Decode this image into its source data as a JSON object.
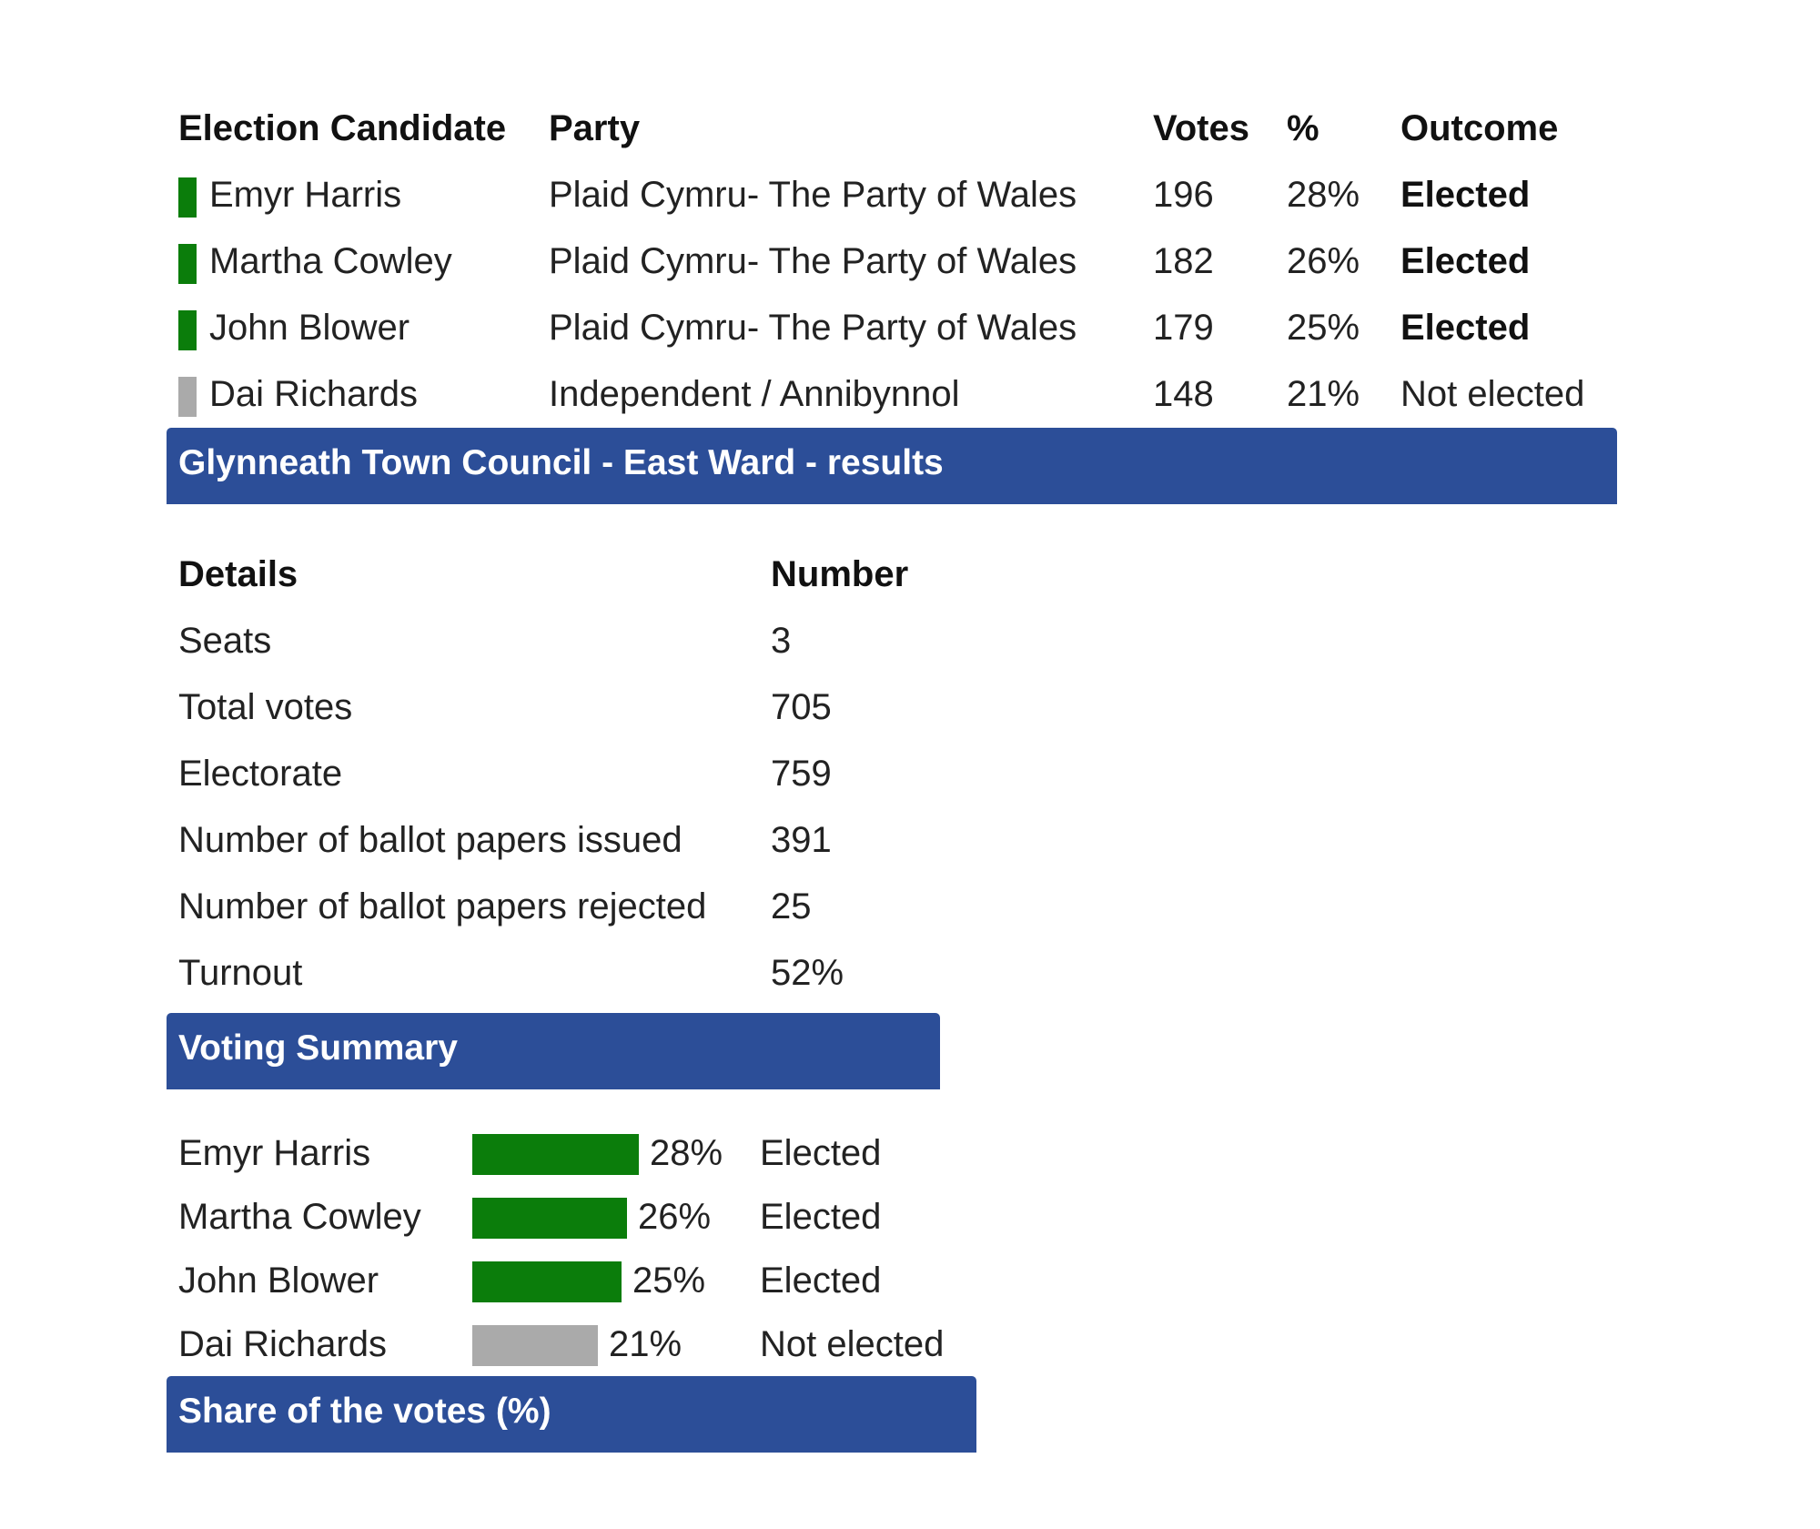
{
  "colors": {
    "elected": "#0b7d0b",
    "not_elected": "#aaaaaa",
    "caption_bar": "#2c4e98"
  },
  "results_table": {
    "headers": {
      "candidate": "Election Candidate",
      "party": "Party",
      "votes": "Votes",
      "percent": "%",
      "outcome": "Outcome"
    },
    "rows": [
      {
        "name": "Emyr Harris",
        "party": "Plaid Cymru- The Party of Wales",
        "votes": "196",
        "percent": "28%",
        "outcome": "Elected",
        "elected": true
      },
      {
        "name": "Martha Cowley",
        "party": "Plaid Cymru- The Party of Wales",
        "votes": "182",
        "percent": "26%",
        "outcome": "Elected",
        "elected": true
      },
      {
        "name": "John Blower",
        "party": "Plaid Cymru- The Party of Wales",
        "votes": "179",
        "percent": "25%",
        "outcome": "Elected",
        "elected": true
      },
      {
        "name": "Dai Richards",
        "party": "Independent / Annibynnol",
        "votes": "148",
        "percent": "21%",
        "outcome": "Not elected",
        "elected": false
      }
    ],
    "caption": "Glynneath Town Council - East Ward - results"
  },
  "details_table": {
    "headers": {
      "details": "Details",
      "number": "Number"
    },
    "rows": [
      {
        "label": "Seats",
        "value": "3"
      },
      {
        "label": "Total votes",
        "value": "705"
      },
      {
        "label": "Electorate",
        "value": "759"
      },
      {
        "label": "Number of ballot papers issued",
        "value": "391"
      },
      {
        "label": "Number of ballot papers rejected",
        "value": "25"
      },
      {
        "label": "Turnout",
        "value": "52%"
      }
    ],
    "caption": "Voting Summary"
  },
  "share_chart": {
    "caption": "Share of the votes (%)"
  },
  "chart_data": {
    "type": "bar",
    "orientation": "horizontal",
    "categories": [
      "Emyr Harris",
      "Martha Cowley",
      "John Blower",
      "Dai Richards"
    ],
    "values": [
      28,
      26,
      25,
      21
    ],
    "value_labels": [
      "28%",
      "26%",
      "25%",
      "21%"
    ],
    "outcomes": [
      "Elected",
      "Elected",
      "Elected",
      "Not elected"
    ],
    "bar_colors": [
      "#0b7d0b",
      "#0b7d0b",
      "#0b7d0b",
      "#aaaaaa"
    ],
    "title": "Share of the votes (%)"
  }
}
